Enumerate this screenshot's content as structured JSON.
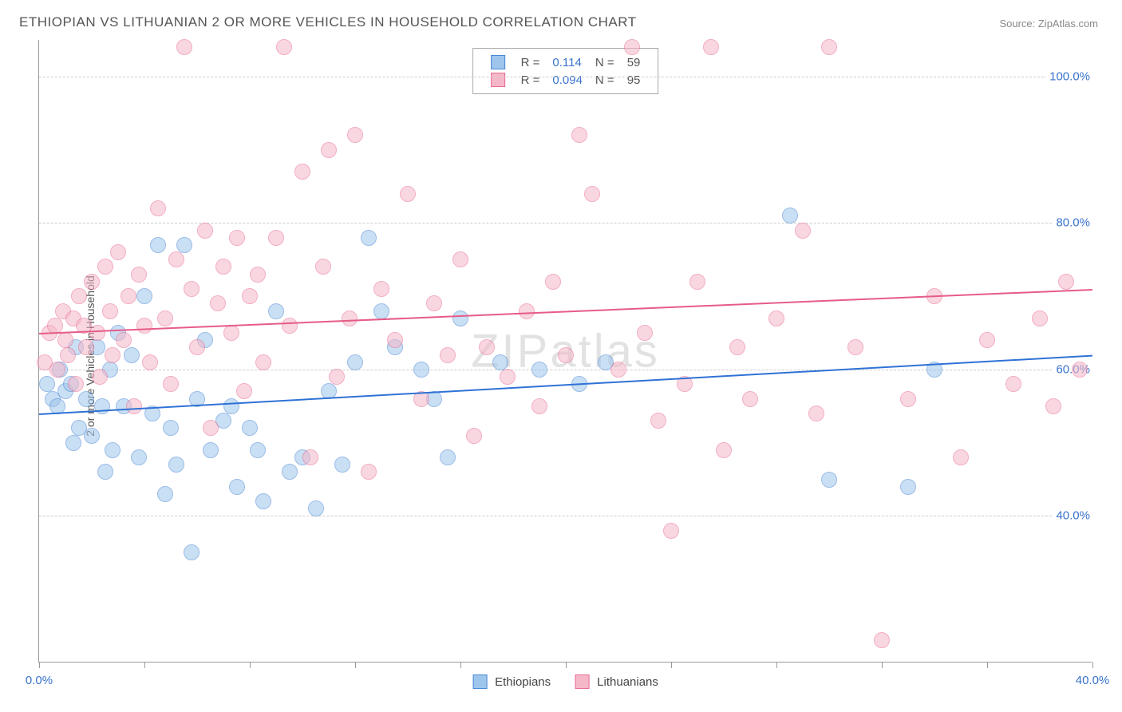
{
  "title": "ETHIOPIAN VS LITHUANIAN 2 OR MORE VEHICLES IN HOUSEHOLD CORRELATION CHART",
  "source": "Source: ZipAtlas.com",
  "watermark": {
    "zip": "ZIP",
    "atlas": "atlas"
  },
  "y_axis_title": "2 or more Vehicles in Household",
  "chart": {
    "type": "scatter",
    "background_color": "#ffffff",
    "grid_color": "#cccccc",
    "axis_color": "#999999",
    "xlim": [
      0,
      40
    ],
    "ylim": [
      20,
      105
    ],
    "x_ticks": [
      0,
      4,
      8,
      12,
      16,
      20,
      24,
      28,
      32,
      36,
      40
    ],
    "x_tick_labels": {
      "0": "0.0%",
      "40": "40.0%"
    },
    "y_gridlines": [
      40,
      60,
      80,
      100
    ],
    "y_tick_labels": {
      "40": "40.0%",
      "60": "60.0%",
      "80": "80.0%",
      "100": "100.0%"
    },
    "marker_radius": 10,
    "marker_opacity": 0.55,
    "series": [
      {
        "name": "Ethiopians",
        "fill": "#9ec5eb",
        "stroke": "#4a87d6",
        "r_value": "0.114",
        "n_value": "59",
        "trend": {
          "y_at_x0": 54,
          "y_at_xmax": 62,
          "color": "#2f72d6"
        },
        "points": [
          [
            0.3,
            58
          ],
          [
            0.5,
            56
          ],
          [
            0.7,
            55
          ],
          [
            0.8,
            60
          ],
          [
            1.0,
            57
          ],
          [
            1.2,
            58
          ],
          [
            1.3,
            50
          ],
          [
            1.4,
            63
          ],
          [
            1.5,
            52
          ],
          [
            1.8,
            56
          ],
          [
            2.0,
            51
          ],
          [
            2.2,
            63
          ],
          [
            2.4,
            55
          ],
          [
            2.5,
            46
          ],
          [
            2.7,
            60
          ],
          [
            2.8,
            49
          ],
          [
            3.0,
            65
          ],
          [
            3.2,
            55
          ],
          [
            3.5,
            62
          ],
          [
            3.8,
            48
          ],
          [
            4.0,
            70
          ],
          [
            4.3,
            54
          ],
          [
            4.5,
            77
          ],
          [
            4.8,
            43
          ],
          [
            5.0,
            52
          ],
          [
            5.2,
            47
          ],
          [
            5.5,
            77
          ],
          [
            5.8,
            35
          ],
          [
            6.0,
            56
          ],
          [
            6.3,
            64
          ],
          [
            6.5,
            49
          ],
          [
            7.0,
            53
          ],
          [
            7.3,
            55
          ],
          [
            7.5,
            44
          ],
          [
            8.0,
            52
          ],
          [
            8.3,
            49
          ],
          [
            8.5,
            42
          ],
          [
            9.0,
            68
          ],
          [
            9.5,
            46
          ],
          [
            10.0,
            48
          ],
          [
            10.5,
            41
          ],
          [
            11.0,
            57
          ],
          [
            11.5,
            47
          ],
          [
            12.0,
            61
          ],
          [
            12.5,
            78
          ],
          [
            13.0,
            68
          ],
          [
            13.5,
            63
          ],
          [
            14.5,
            60
          ],
          [
            15.0,
            56
          ],
          [
            15.5,
            48
          ],
          [
            16.0,
            67
          ],
          [
            17.5,
            61
          ],
          [
            19.0,
            60
          ],
          [
            20.5,
            58
          ],
          [
            21.5,
            61
          ],
          [
            28.5,
            81
          ],
          [
            30.0,
            45
          ],
          [
            33.0,
            44
          ],
          [
            34.0,
            60
          ]
        ]
      },
      {
        "name": "Lithuanians",
        "fill": "#f5b8c8",
        "stroke": "#e86c94",
        "r_value": "0.094",
        "n_value": "95",
        "trend": {
          "y_at_x0": 65,
          "y_at_xmax": 71,
          "color": "#e65c87"
        },
        "points": [
          [
            0.2,
            61
          ],
          [
            0.4,
            65
          ],
          [
            0.6,
            66
          ],
          [
            0.7,
            60
          ],
          [
            0.9,
            68
          ],
          [
            1.0,
            64
          ],
          [
            1.1,
            62
          ],
          [
            1.3,
            67
          ],
          [
            1.4,
            58
          ],
          [
            1.5,
            70
          ],
          [
            1.7,
            66
          ],
          [
            1.8,
            63
          ],
          [
            2.0,
            72
          ],
          [
            2.2,
            65
          ],
          [
            2.3,
            59
          ],
          [
            2.5,
            74
          ],
          [
            2.7,
            68
          ],
          [
            2.8,
            62
          ],
          [
            3.0,
            76
          ],
          [
            3.2,
            64
          ],
          [
            3.4,
            70
          ],
          [
            3.6,
            55
          ],
          [
            3.8,
            73
          ],
          [
            4.0,
            66
          ],
          [
            4.2,
            61
          ],
          [
            4.5,
            82
          ],
          [
            4.8,
            67
          ],
          [
            5.0,
            58
          ],
          [
            5.2,
            75
          ],
          [
            5.5,
            104
          ],
          [
            5.8,
            71
          ],
          [
            6.0,
            63
          ],
          [
            6.3,
            79
          ],
          [
            6.5,
            52
          ],
          [
            6.8,
            69
          ],
          [
            7.0,
            74
          ],
          [
            7.3,
            65
          ],
          [
            7.5,
            78
          ],
          [
            7.8,
            57
          ],
          [
            8.0,
            70
          ],
          [
            8.3,
            73
          ],
          [
            8.5,
            61
          ],
          [
            9.0,
            78
          ],
          [
            9.3,
            104
          ],
          [
            9.5,
            66
          ],
          [
            10.0,
            87
          ],
          [
            10.3,
            48
          ],
          [
            10.8,
            74
          ],
          [
            11.0,
            90
          ],
          [
            11.3,
            59
          ],
          [
            11.8,
            67
          ],
          [
            12.0,
            92
          ],
          [
            12.5,
            46
          ],
          [
            13.0,
            71
          ],
          [
            13.5,
            64
          ],
          [
            14.0,
            84
          ],
          [
            14.5,
            56
          ],
          [
            15.0,
            69
          ],
          [
            15.5,
            62
          ],
          [
            16.0,
            75
          ],
          [
            16.5,
            51
          ],
          [
            17.0,
            63
          ],
          [
            17.8,
            59
          ],
          [
            18.5,
            68
          ],
          [
            19.0,
            55
          ],
          [
            19.5,
            72
          ],
          [
            20.0,
            62
          ],
          [
            20.5,
            92
          ],
          [
            21.0,
            84
          ],
          [
            22.0,
            60
          ],
          [
            22.5,
            104
          ],
          [
            23.0,
            65
          ],
          [
            23.5,
            53
          ],
          [
            24.0,
            38
          ],
          [
            24.5,
            58
          ],
          [
            25.0,
            72
          ],
          [
            25.5,
            104
          ],
          [
            26.0,
            49
          ],
          [
            26.5,
            63
          ],
          [
            27.0,
            56
          ],
          [
            28.0,
            67
          ],
          [
            29.0,
            79
          ],
          [
            29.5,
            54
          ],
          [
            30.0,
            104
          ],
          [
            31.0,
            63
          ],
          [
            32.0,
            23
          ],
          [
            33.0,
            56
          ],
          [
            34.0,
            70
          ],
          [
            35.0,
            48
          ],
          [
            36.0,
            64
          ],
          [
            37.0,
            58
          ],
          [
            38.0,
            67
          ],
          [
            38.5,
            55
          ],
          [
            39.0,
            72
          ],
          [
            39.5,
            60
          ]
        ]
      }
    ]
  },
  "legend_bottom": [
    {
      "swatch_fill": "#9ec5eb",
      "swatch_stroke": "#4a87d6",
      "label": "Ethiopians"
    },
    {
      "swatch_fill": "#f5b8c8",
      "swatch_stroke": "#e86c94",
      "label": "Lithuanians"
    }
  ],
  "stat_labels": {
    "r": "R =",
    "n": "N ="
  }
}
